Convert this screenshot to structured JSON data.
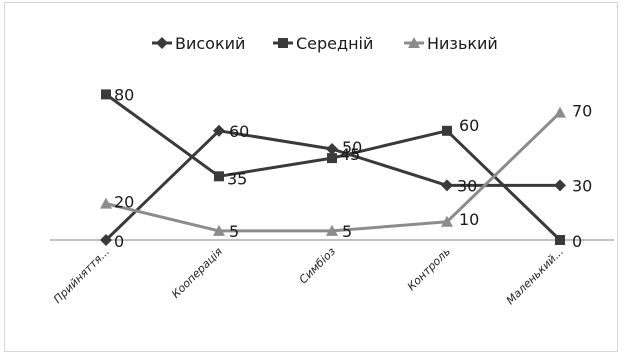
{
  "chart_data": {
    "type": "line",
    "title": "",
    "xlabel": "",
    "ylabel": "",
    "categories": [
      "Прийняття...",
      "Кооперація",
      "Симбіоз",
      "Контроль",
      "Маленький..."
    ],
    "ylim": [
      0,
      90
    ],
    "grid": false,
    "legend_position": "top",
    "series": [
      {
        "name": "Високий",
        "values": [
          0,
          60,
          50,
          30,
          30
        ],
        "marker": "diamond",
        "color": "#3a3a3a"
      },
      {
        "name": "Середній",
        "values": [
          80,
          35,
          45,
          60,
          0
        ],
        "marker": "square",
        "color": "#3a3a3a"
      },
      {
        "name": "Низький",
        "values": [
          20,
          5,
          5,
          10,
          70
        ],
        "marker": "triangle",
        "color": "#8c8c8c"
      }
    ],
    "data_labels": [
      {
        "series": 0,
        "labels": [
          "0",
          "60",
          "50",
          "30",
          "30"
        ]
      },
      {
        "series": 1,
        "labels": [
          "80",
          "35",
          "45",
          "60",
          "0"
        ]
      },
      {
        "series": 2,
        "labels": [
          "20",
          "5",
          "5",
          "10",
          "70"
        ]
      }
    ]
  }
}
